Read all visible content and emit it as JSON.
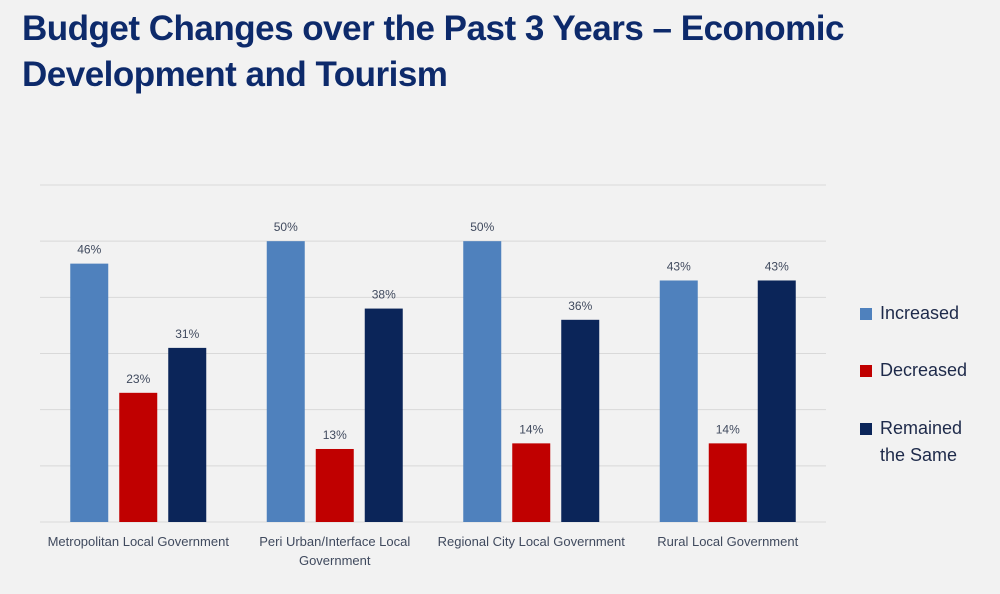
{
  "title": "Budget Changes over the Past 3 Years – Economic Development and Tourism",
  "colors": {
    "background": "#f2f2f2",
    "title": "#0d2a6b",
    "grid": "#d9d9d9"
  },
  "chart_data": {
    "type": "bar",
    "title": "Budget Changes over the Past 3 Years – Economic Development and Tourism",
    "categories": [
      [
        "Metropolitan Local Government"
      ],
      [
        "Peri Urban/Interface Local",
        "Government"
      ],
      [
        "Regional City Local Government"
      ],
      [
        "Rural Local Government"
      ]
    ],
    "series": [
      {
        "name": "Increased",
        "color": "#4f81bd",
        "values": [
          46,
          50,
          50,
          43
        ],
        "labels": [
          "46%",
          "50%",
          "50%",
          "43%"
        ]
      },
      {
        "name": "Decreased",
        "color": "#c00000",
        "values": [
          23,
          13,
          14,
          14
        ],
        "labels": [
          "23%",
          "13%",
          "14%",
          "14%"
        ]
      },
      {
        "name": "Remained the Same",
        "legend_lines": [
          "Remained",
          "the Same"
        ],
        "color": "#0b2559",
        "values": [
          31,
          38,
          36,
          43
        ],
        "labels": [
          "31%",
          "38%",
          "36%",
          "43%"
        ]
      }
    ],
    "ylim": [
      0,
      60
    ],
    "grid": true,
    "legend_position": "right"
  }
}
